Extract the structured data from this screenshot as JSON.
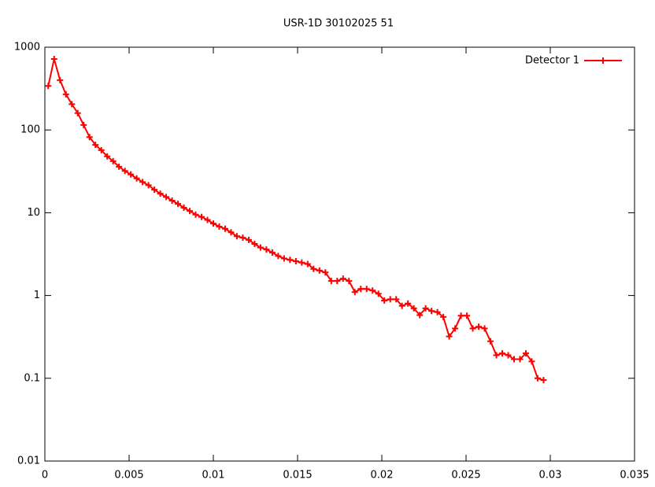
{
  "chart_data": {
    "type": "line",
    "title": "USR-1D 30102025 51",
    "log_y": true,
    "legend": "top-right",
    "x": [
      0.0002,
      0.00055,
      0.0009,
      0.00125,
      0.0016,
      0.00195,
      0.0023,
      0.00265,
      0.003,
      0.00335,
      0.0037,
      0.00405,
      0.0044,
      0.00475,
      0.0051,
      0.00545,
      0.0058,
      0.00615,
      0.0065,
      0.00685,
      0.0072,
      0.00755,
      0.0079,
      0.00825,
      0.0086,
      0.00895,
      0.0093,
      0.00965,
      0.01,
      0.01035,
      0.0107,
      0.01105,
      0.0114,
      0.01175,
      0.0121,
      0.01245,
      0.0128,
      0.01315,
      0.0135,
      0.01385,
      0.0142,
      0.01455,
      0.0149,
      0.01525,
      0.0156,
      0.01595,
      0.0163,
      0.01665,
      0.017,
      0.01735,
      0.0177,
      0.01805,
      0.0184,
      0.01875,
      0.0191,
      0.01945,
      0.0198,
      0.02015,
      0.0205,
      0.02085,
      0.0212,
      0.02155,
      0.0219,
      0.02225,
      0.0226,
      0.02295,
      0.0233,
      0.02365,
      0.024,
      0.02435,
      0.0247,
      0.02505,
      0.0254,
      0.02575,
      0.0261,
      0.02645,
      0.0268,
      0.02715,
      0.0275,
      0.02785,
      0.0282,
      0.02855,
      0.0289,
      0.02925,
      0.0296
    ],
    "series": [
      {
        "name": "Detector 1",
        "color": "#ff0000",
        "values": [
          340,
          720,
          400,
          270,
          205,
          160,
          115,
          82,
          66,
          57,
          48,
          42,
          36,
          32,
          29,
          26,
          23.5,
          21.5,
          19,
          17,
          15.5,
          14,
          12.8,
          11.5,
          10.5,
          9.5,
          8.9,
          8.2,
          7.4,
          6.8,
          6.4,
          5.8,
          5.2,
          5.0,
          4.7,
          4.2,
          3.8,
          3.6,
          3.3,
          3.0,
          2.8,
          2.7,
          2.6,
          2.5,
          2.4,
          2.1,
          2.0,
          1.9,
          1.5,
          1.5,
          1.6,
          1.5,
          1.1,
          1.2,
          1.2,
          1.15,
          1.05,
          0.87,
          0.9,
          0.9,
          0.75,
          0.8,
          0.7,
          0.58,
          0.7,
          0.65,
          0.63,
          0.55,
          0.32,
          0.4,
          0.57,
          0.57,
          0.4,
          0.42,
          0.4,
          0.28,
          0.19,
          0.2,
          0.19,
          0.17,
          0.17,
          0.2,
          0.16,
          0.1,
          0.095
        ]
      }
    ],
    "xlim": [
      0,
      0.035
    ],
    "xticks": [
      0,
      0.005,
      0.01,
      0.015,
      0.02,
      0.025,
      0.03,
      0.035
    ],
    "ylim": [
      0.01,
      1000
    ],
    "yticks": [
      0.01,
      0.1,
      1,
      10,
      100,
      1000
    ]
  }
}
